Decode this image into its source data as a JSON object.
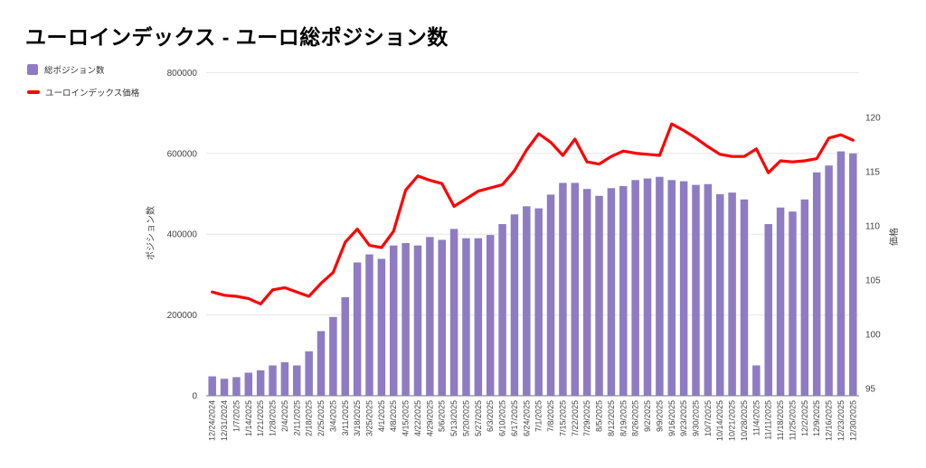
{
  "chart_data": {
    "type": "bar",
    "title": "ユーロインデックス - ユーロ総ポジション数",
    "grid": true,
    "legend_position": "top-left",
    "categories": [
      "12/24/2024",
      "12/31/2024",
      "1/7/2025",
      "1/14/2025",
      "1/21/2025",
      "1/28/2025",
      "2/4/2025",
      "2/11/2025",
      "2/18/2025",
      "2/25/2025",
      "3/4/2025",
      "3/11/2025",
      "3/18/2025",
      "3/25/2025",
      "4/1/2025",
      "4/8/2025",
      "4/15/2025",
      "4/22/2025",
      "4/29/2025",
      "5/6/2025",
      "5/13/2025",
      "5/20/2025",
      "5/27/2025",
      "6/3/2025",
      "6/10/2025",
      "6/17/2025",
      "6/24/2025",
      "7/1/2025",
      "7/8/2025",
      "7/15/2025",
      "7/22/2025",
      "7/29/2025",
      "8/5/2025",
      "8/12/2025",
      "8/19/2025",
      "8/26/2025",
      "9/2/2025",
      "9/9/2025",
      "9/16/2025",
      "9/23/2025",
      "9/30/2025",
      "10/7/2025",
      "10/14/2025",
      "10/21/2025",
      "10/28/2025",
      "11/4/2025",
      "11/11/2025",
      "11/18/2025",
      "11/25/2025",
      "12/2/2025",
      "12/9/2025",
      "12/16/2025",
      "12/23/2025",
      "12/30/2025"
    ],
    "series": [
      {
        "name": "総ポジション数",
        "chart_type": "bar",
        "axis": "left",
        "color": "#8e7cc3",
        "values": [
          48000,
          42000,
          46000,
          57000,
          63000,
          75000,
          83000,
          75000,
          110000,
          160000,
          195000,
          244000,
          330000,
          350000,
          339000,
          372000,
          378000,
          372000,
          393000,
          386000,
          413000,
          390000,
          390000,
          398000,
          425000,
          449000,
          469000,
          464000,
          498000,
          527000,
          527000,
          512000,
          495000,
          514000,
          519000,
          534000,
          538000,
          542000,
          534000,
          531000,
          522000,
          524000,
          499000,
          503000,
          486000,
          75000,
          425000,
          466000,
          456000,
          486000,
          553000,
          570000,
          605000,
          600000
        ]
      },
      {
        "name": "ユーロインデックス価格",
        "chart_type": "line",
        "axis": "right",
        "color": "#ff0000",
        "values": [
          103.9,
          103.6,
          103.5,
          103.3,
          102.8,
          104.1,
          104.3,
          103.9,
          103.5,
          104.7,
          105.7,
          108.5,
          109.7,
          108.2,
          108.0,
          109.5,
          113.3,
          114.6,
          114.2,
          113.9,
          111.8,
          112.5,
          113.2,
          113.5,
          113.8,
          115.1,
          117.0,
          118.5,
          117.7,
          116.5,
          118.0,
          115.9,
          115.7,
          116.4,
          116.9,
          116.7,
          116.6,
          116.5,
          119.4,
          118.8,
          118.1,
          117.3,
          116.6,
          116.4,
          116.4,
          117.1,
          114.9,
          116.0,
          115.9,
          116.0,
          116.2,
          118.1,
          118.4,
          117.9
        ]
      }
    ],
    "left_axis": {
      "label": "ポジション数",
      "ticks": [
        0,
        200000,
        400000,
        600000,
        800000
      ],
      "range": [
        0,
        800000
      ]
    },
    "right_axis": {
      "label": "価格",
      "ticks": [
        95,
        100,
        105,
        110,
        115,
        120
      ],
      "range": [
        95,
        120
      ]
    },
    "colors": {
      "grid": "#e6e6e6",
      "axis_line": "#757575",
      "tick_text": "#444444",
      "title_text": "#000000"
    }
  }
}
